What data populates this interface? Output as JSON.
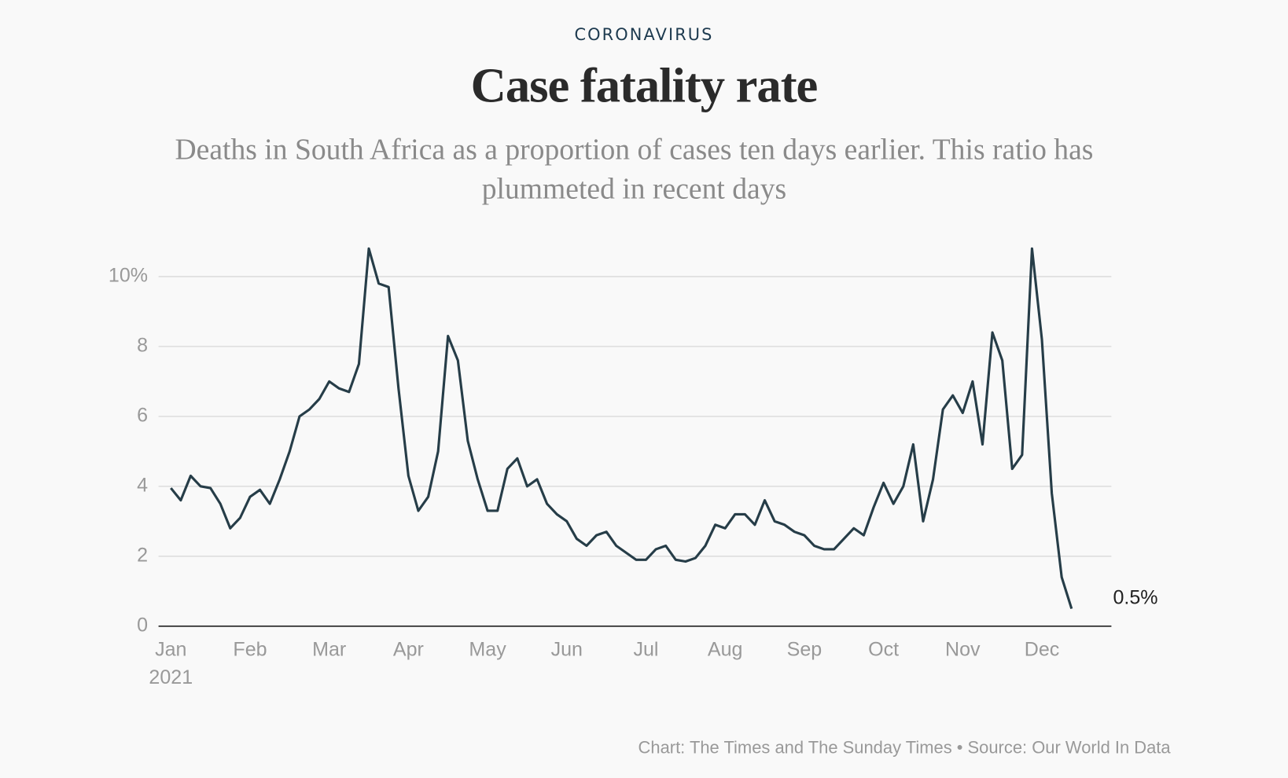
{
  "kicker": "CORONAVIRUS",
  "chart_data": {
    "type": "line",
    "title": "Case fatality rate",
    "subtitle": "Deaths in South Africa as a proportion of cases ten days earlier. This ratio has plummeted in recent days",
    "x_sublabel": "2021",
    "categories": [
      "Jan",
      null,
      null,
      null,
      null,
      null,
      null,
      null,
      "Feb",
      null,
      null,
      null,
      null,
      null,
      null,
      null,
      "Mar",
      null,
      null,
      null,
      null,
      null,
      null,
      null,
      "Apr",
      null,
      null,
      null,
      null,
      null,
      null,
      null,
      "May",
      null,
      null,
      null,
      null,
      null,
      null,
      null,
      "Jun",
      null,
      null,
      null,
      null,
      null,
      null,
      null,
      "Jul",
      null,
      null,
      null,
      null,
      null,
      null,
      null,
      "Aug",
      null,
      null,
      null,
      null,
      null,
      null,
      null,
      "Sep",
      null,
      null,
      null,
      null,
      null,
      null,
      null,
      "Oct",
      null,
      null,
      null,
      null,
      null,
      null,
      null,
      "Nov",
      null,
      null,
      null,
      null,
      null,
      null,
      null,
      "Dec",
      null,
      null,
      null
    ],
    "series": [
      {
        "color": "#263d48",
        "values": [
          3.95,
          3.6,
          4.3,
          4.0,
          3.95,
          3.5,
          2.8,
          3.1,
          3.7,
          3.9,
          3.5,
          4.2,
          5.0,
          6.0,
          6.2,
          6.5,
          7.0,
          6.8,
          6.7,
          7.5,
          10.8,
          9.8,
          9.7,
          6.8,
          4.3,
          3.3,
          3.7,
          5.0,
          8.3,
          7.6,
          5.3,
          4.2,
          3.3,
          3.3,
          4.5,
          4.8,
          4.0,
          4.2,
          3.5,
          3.2,
          3.0,
          2.5,
          2.3,
          2.6,
          2.7,
          2.3,
          2.1,
          1.9,
          1.9,
          2.2,
          2.3,
          1.9,
          1.85,
          1.95,
          2.3,
          2.9,
          2.8,
          3.2,
          3.2,
          2.9,
          3.6,
          3.0,
          2.9,
          2.7,
          2.6,
          2.3,
          2.2,
          2.2,
          2.5,
          2.8,
          2.6,
          3.4,
          4.1,
          3.5,
          4.0,
          5.2,
          3.0,
          4.2,
          6.2,
          6.6,
          6.1,
          7.0,
          5.2,
          8.4,
          7.6,
          4.5,
          4.9,
          10.8,
          8.2,
          3.8,
          1.4,
          0.5
        ],
        "value_labels": [
          null,
          null,
          null,
          null,
          null,
          null,
          null,
          null,
          null,
          null,
          null,
          null,
          null,
          null,
          null,
          null,
          null,
          null,
          null,
          null,
          null,
          null,
          null,
          null,
          null,
          null,
          null,
          null,
          null,
          null,
          null,
          null,
          null,
          null,
          null,
          null,
          null,
          null,
          null,
          null,
          null,
          null,
          null,
          null,
          null,
          null,
          null,
          null,
          null,
          null,
          null,
          null,
          null,
          null,
          null,
          null,
          null,
          null,
          null,
          null,
          null,
          null,
          null,
          null,
          null,
          null,
          null,
          null,
          null,
          null,
          null,
          null,
          null,
          null,
          null,
          null,
          null,
          null,
          null,
          null,
          null,
          null,
          null,
          null,
          null,
          null,
          null,
          null,
          null,
          null,
          null,
          "0.5%"
        ]
      }
    ],
    "ylim": [
      0,
      11
    ],
    "yticks": [
      0,
      2,
      4,
      6,
      8,
      {
        "value": 10,
        "label": "10%"
      }
    ],
    "grid": true
  },
  "footer": "Chart: The Times and The Sunday Times • Source: Our World In Data"
}
